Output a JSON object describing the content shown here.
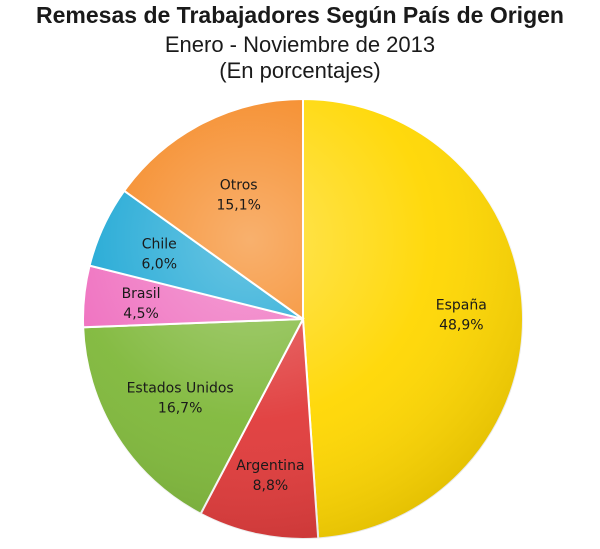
{
  "chart_data": {
    "type": "pie",
    "title": "Remesas de Trabajadores Según País de Origen",
    "subtitle": "Enero - Noviembre de 2013",
    "subtitle2": "(En porcentajes)",
    "slices": [
      {
        "label": "España",
        "value": 48.9,
        "display": "48,9%",
        "color": "#ffd700"
      },
      {
        "label": "Argentina",
        "value": 8.8,
        "display": "8,8%",
        "color": "#e03a3a"
      },
      {
        "label": "Estados Unidos",
        "value": 16.7,
        "display": "16,7%",
        "color": "#7fb83a"
      },
      {
        "label": "Brasil",
        "value": 4.5,
        "display": "4,5%",
        "color": "#ef6fbf"
      },
      {
        "label": "Chile",
        "value": 6.0,
        "display": "6,0%",
        "color": "#1aa6d4"
      },
      {
        "label": "Otros",
        "value": 15.1,
        "display": "15,1%",
        "color": "#f5861f"
      }
    ]
  }
}
